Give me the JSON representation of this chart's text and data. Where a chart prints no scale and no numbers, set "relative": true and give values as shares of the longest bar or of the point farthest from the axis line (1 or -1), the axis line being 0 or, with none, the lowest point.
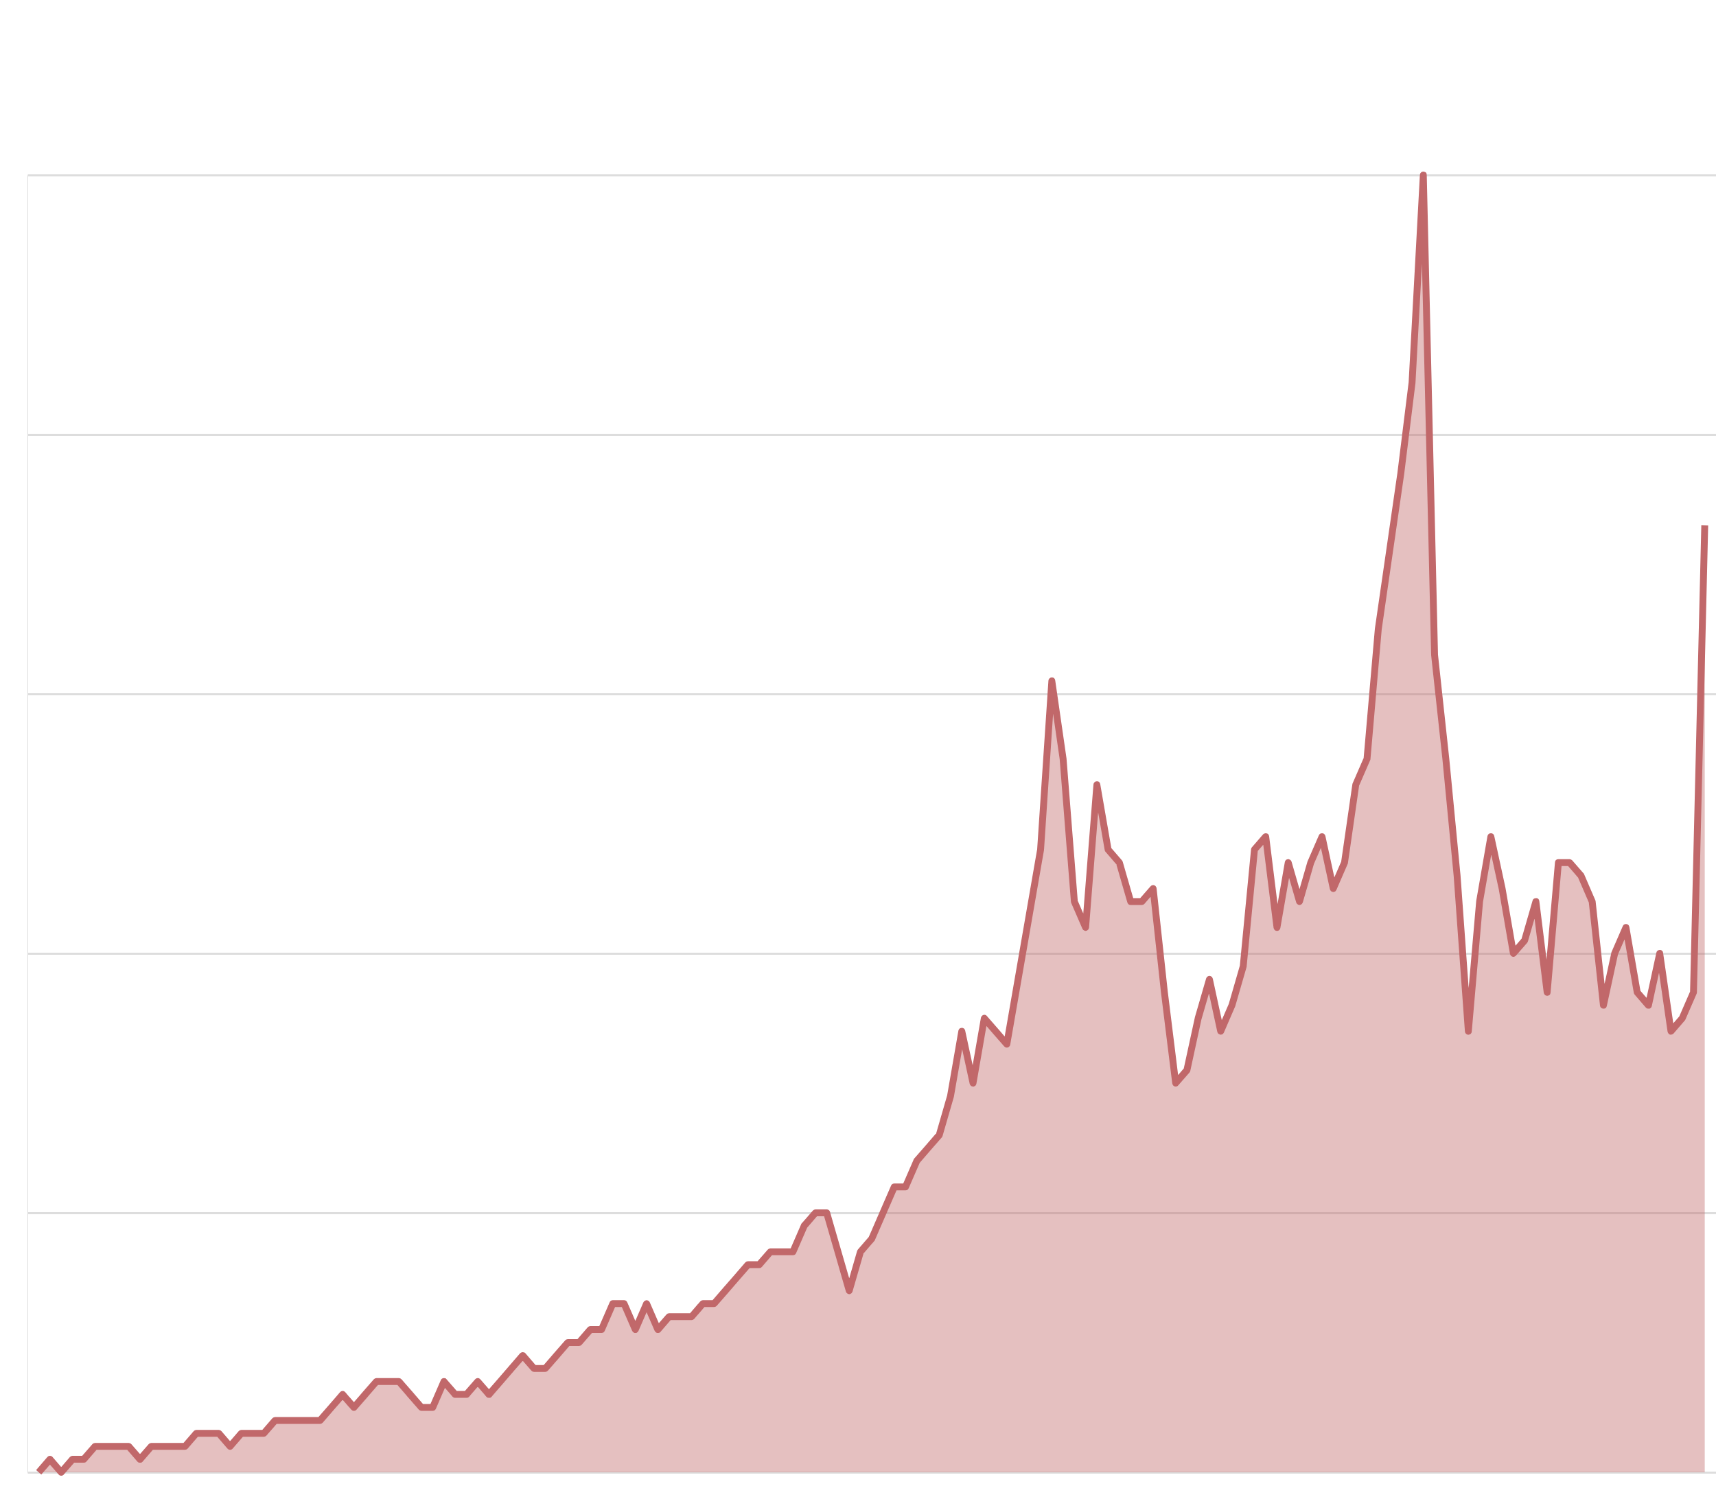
{
  "chart_data": {
    "type": "area",
    "relative": true,
    "grid": "y",
    "tick_labels": false,
    "categories": [
      null,
      null,
      null,
      null,
      null,
      null,
      null,
      null,
      null,
      null,
      null,
      null,
      null,
      null,
      null,
      null,
      null,
      null,
      null,
      null,
      null,
      null,
      null,
      null,
      null,
      null,
      null,
      null,
      null,
      null,
      null,
      null,
      null,
      null,
      null,
      null,
      null,
      null,
      null,
      null,
      null,
      null,
      null,
      null,
      null,
      null,
      null,
      null,
      null,
      null,
      null,
      null,
      null,
      null,
      null,
      null,
      null,
      null,
      null,
      null,
      null,
      null,
      null,
      null,
      null,
      null,
      null,
      null,
      null,
      null,
      null,
      null,
      null,
      null,
      null,
      null,
      null,
      null,
      null,
      null,
      null,
      null,
      null,
      null,
      null,
      null,
      null,
      null,
      null,
      null,
      null,
      null,
      null,
      null,
      null,
      null,
      null,
      null,
      null,
      null,
      null,
      null,
      null,
      null,
      null,
      null,
      null,
      null,
      null,
      null,
      null,
      null,
      null,
      null,
      null,
      null,
      null,
      null,
      null,
      null,
      null,
      null,
      null,
      null,
      null,
      null,
      null,
      null,
      null,
      null,
      null,
      null,
      null,
      null,
      null,
      null,
      null,
      null,
      null,
      null,
      null,
      null,
      null,
      null,
      null,
      null,
      null,
      null,
      null
    ],
    "series": [
      {
        "color": "#c1686a",
        "values": [
          0.0,
          0.01,
          0.0,
          0.01,
          0.01,
          0.02,
          0.02,
          0.02,
          0.02,
          0.01,
          0.02,
          0.02,
          0.02,
          0.02,
          0.03,
          0.03,
          0.03,
          0.02,
          0.03,
          0.03,
          0.03,
          0.04,
          0.04,
          0.04,
          0.04,
          0.04,
          0.05,
          0.06,
          0.05,
          0.06,
          0.07,
          0.07,
          0.07,
          0.06,
          0.05,
          0.05,
          0.07,
          0.06,
          0.06,
          0.07,
          0.06,
          0.07,
          0.08,
          0.09,
          0.08,
          0.08,
          0.09,
          0.1,
          0.1,
          0.11,
          0.11,
          0.13,
          0.13,
          0.11,
          0.13,
          0.11,
          0.12,
          0.12,
          0.12,
          0.13,
          0.13,
          0.14,
          0.15,
          0.16,
          0.16,
          0.17,
          0.17,
          0.17,
          0.19,
          0.2,
          0.2,
          0.17,
          0.14,
          0.17,
          0.18,
          0.2,
          0.22,
          0.22,
          0.24,
          0.25,
          0.26,
          0.29,
          0.34,
          0.3,
          0.35,
          0.34,
          0.33,
          0.38,
          0.43,
          0.48,
          0.61,
          0.55,
          0.44,
          0.42,
          0.53,
          0.48,
          0.47,
          0.44,
          0.44,
          0.45,
          0.37,
          0.3,
          0.31,
          0.35,
          0.38,
          0.34,
          0.36,
          0.39,
          0.48,
          0.49,
          0.42,
          0.47,
          0.44,
          0.47,
          0.49,
          0.45,
          0.47,
          0.53,
          0.55,
          0.65,
          0.71,
          0.77,
          0.84,
          1.0,
          0.63,
          0.55,
          0.46,
          0.34,
          0.44,
          0.49,
          0.45,
          0.4,
          0.41,
          0.44,
          0.37,
          0.47,
          0.47,
          0.46,
          0.44,
          0.36,
          0.4,
          0.42,
          0.37,
          0.36,
          0.4,
          0.34,
          0.35,
          0.37,
          0.73
        ]
      }
    ]
  }
}
